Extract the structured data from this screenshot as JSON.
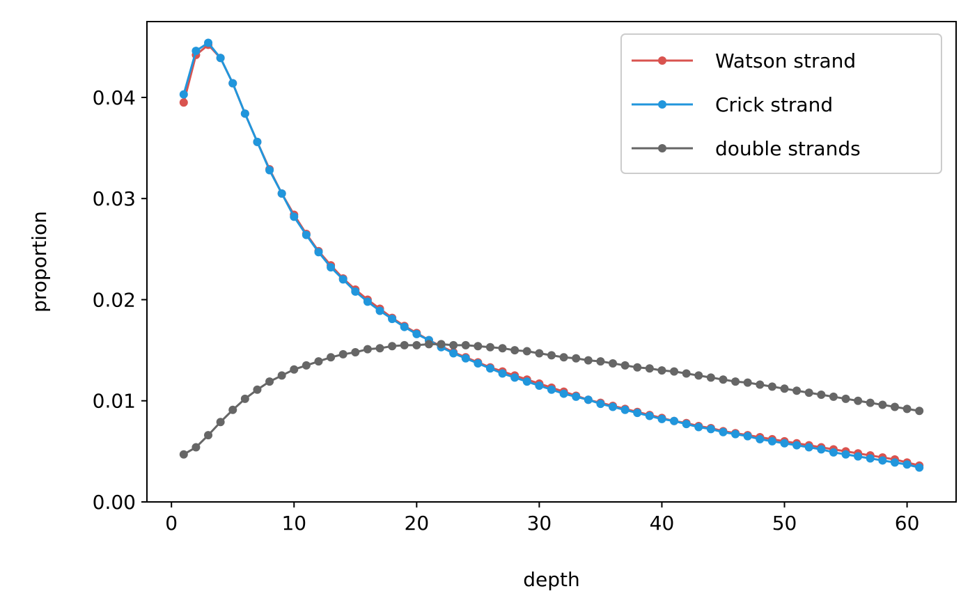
{
  "chart_data": {
    "type": "line",
    "title": "",
    "xlabel": "depth",
    "ylabel": "proportion",
    "xlim": [
      -2,
      64
    ],
    "ylim": [
      0,
      0.0475
    ],
    "xticks": [
      "0",
      "10",
      "20",
      "30",
      "40",
      "50",
      "60"
    ],
    "yticks": [
      "0.00",
      "0.01",
      "0.02",
      "0.03",
      "0.04"
    ],
    "grid": false,
    "legend_position": "top-right",
    "x": [
      1,
      2,
      3,
      4,
      5,
      6,
      7,
      8,
      9,
      10,
      11,
      12,
      13,
      14,
      15,
      16,
      17,
      18,
      19,
      20,
      21,
      22,
      23,
      24,
      25,
      26,
      27,
      28,
      29,
      30,
      31,
      32,
      33,
      34,
      35,
      36,
      37,
      38,
      39,
      40,
      41,
      42,
      43,
      44,
      45,
      46,
      47,
      48,
      49,
      50,
      51,
      52,
      53,
      54,
      55,
      56,
      57,
      58,
      59,
      60,
      61
    ],
    "series": [
      {
        "name": "Watson strand",
        "color": "#d9534f",
        "values": [
          0.0395,
          0.0442,
          0.0452,
          0.0439,
          0.0414,
          0.0384,
          0.0356,
          0.0329,
          0.0305,
          0.0284,
          0.0265,
          0.0248,
          0.0234,
          0.0221,
          0.021,
          0.02,
          0.0191,
          0.0182,
          0.0174,
          0.0167,
          0.016,
          0.0154,
          0.0148,
          0.0143,
          0.0138,
          0.0133,
          0.0129,
          0.0125,
          0.0121,
          0.0117,
          0.0113,
          0.0109,
          0.0105,
          0.0101,
          0.0098,
          0.0095,
          0.0092,
          0.0089,
          0.0086,
          0.0083,
          0.008,
          0.0078,
          0.0075,
          0.0073,
          0.007,
          0.0068,
          0.0066,
          0.0064,
          0.0062,
          0.006,
          0.0058,
          0.0056,
          0.0054,
          0.0052,
          0.005,
          0.0048,
          0.0046,
          0.0044,
          0.0042,
          0.0039,
          0.0036
        ]
      },
      {
        "name": "Crick strand",
        "color": "#2196dc",
        "values": [
          0.0403,
          0.0446,
          0.0454,
          0.0439,
          0.0414,
          0.0384,
          0.0356,
          0.0328,
          0.0305,
          0.0282,
          0.0264,
          0.0247,
          0.0232,
          0.022,
          0.0208,
          0.0198,
          0.0189,
          0.0181,
          0.0173,
          0.0166,
          0.016,
          0.0153,
          0.0147,
          0.0142,
          0.0137,
          0.0132,
          0.0127,
          0.0123,
          0.0119,
          0.0115,
          0.0111,
          0.0107,
          0.0104,
          0.0101,
          0.0097,
          0.0094,
          0.0091,
          0.0088,
          0.0085,
          0.0082,
          0.008,
          0.0077,
          0.0074,
          0.0072,
          0.0069,
          0.0067,
          0.0065,
          0.0062,
          0.006,
          0.0058,
          0.0056,
          0.0054,
          0.0052,
          0.0049,
          0.0047,
          0.0045,
          0.0043,
          0.0041,
          0.0039,
          0.0037,
          0.0034
        ]
      },
      {
        "name": "double strands",
        "color": "#666666",
        "values": [
          0.0047,
          0.0054,
          0.0066,
          0.0079,
          0.0091,
          0.0102,
          0.0111,
          0.0119,
          0.0125,
          0.0131,
          0.0135,
          0.0139,
          0.0143,
          0.0146,
          0.0148,
          0.0151,
          0.0152,
          0.0154,
          0.0155,
          0.0155,
          0.0156,
          0.0156,
          0.0155,
          0.0155,
          0.0154,
          0.0153,
          0.0152,
          0.015,
          0.0149,
          0.0147,
          0.0145,
          0.0143,
          0.0142,
          0.014,
          0.0139,
          0.0137,
          0.0135,
          0.0133,
          0.0132,
          0.013,
          0.0129,
          0.0127,
          0.0125,
          0.0123,
          0.0121,
          0.0119,
          0.0118,
          0.0116,
          0.0114,
          0.0112,
          0.011,
          0.0108,
          0.0106,
          0.0104,
          0.0102,
          0.01,
          0.0098,
          0.0096,
          0.0094,
          0.0092,
          0.009
        ]
      }
    ]
  }
}
